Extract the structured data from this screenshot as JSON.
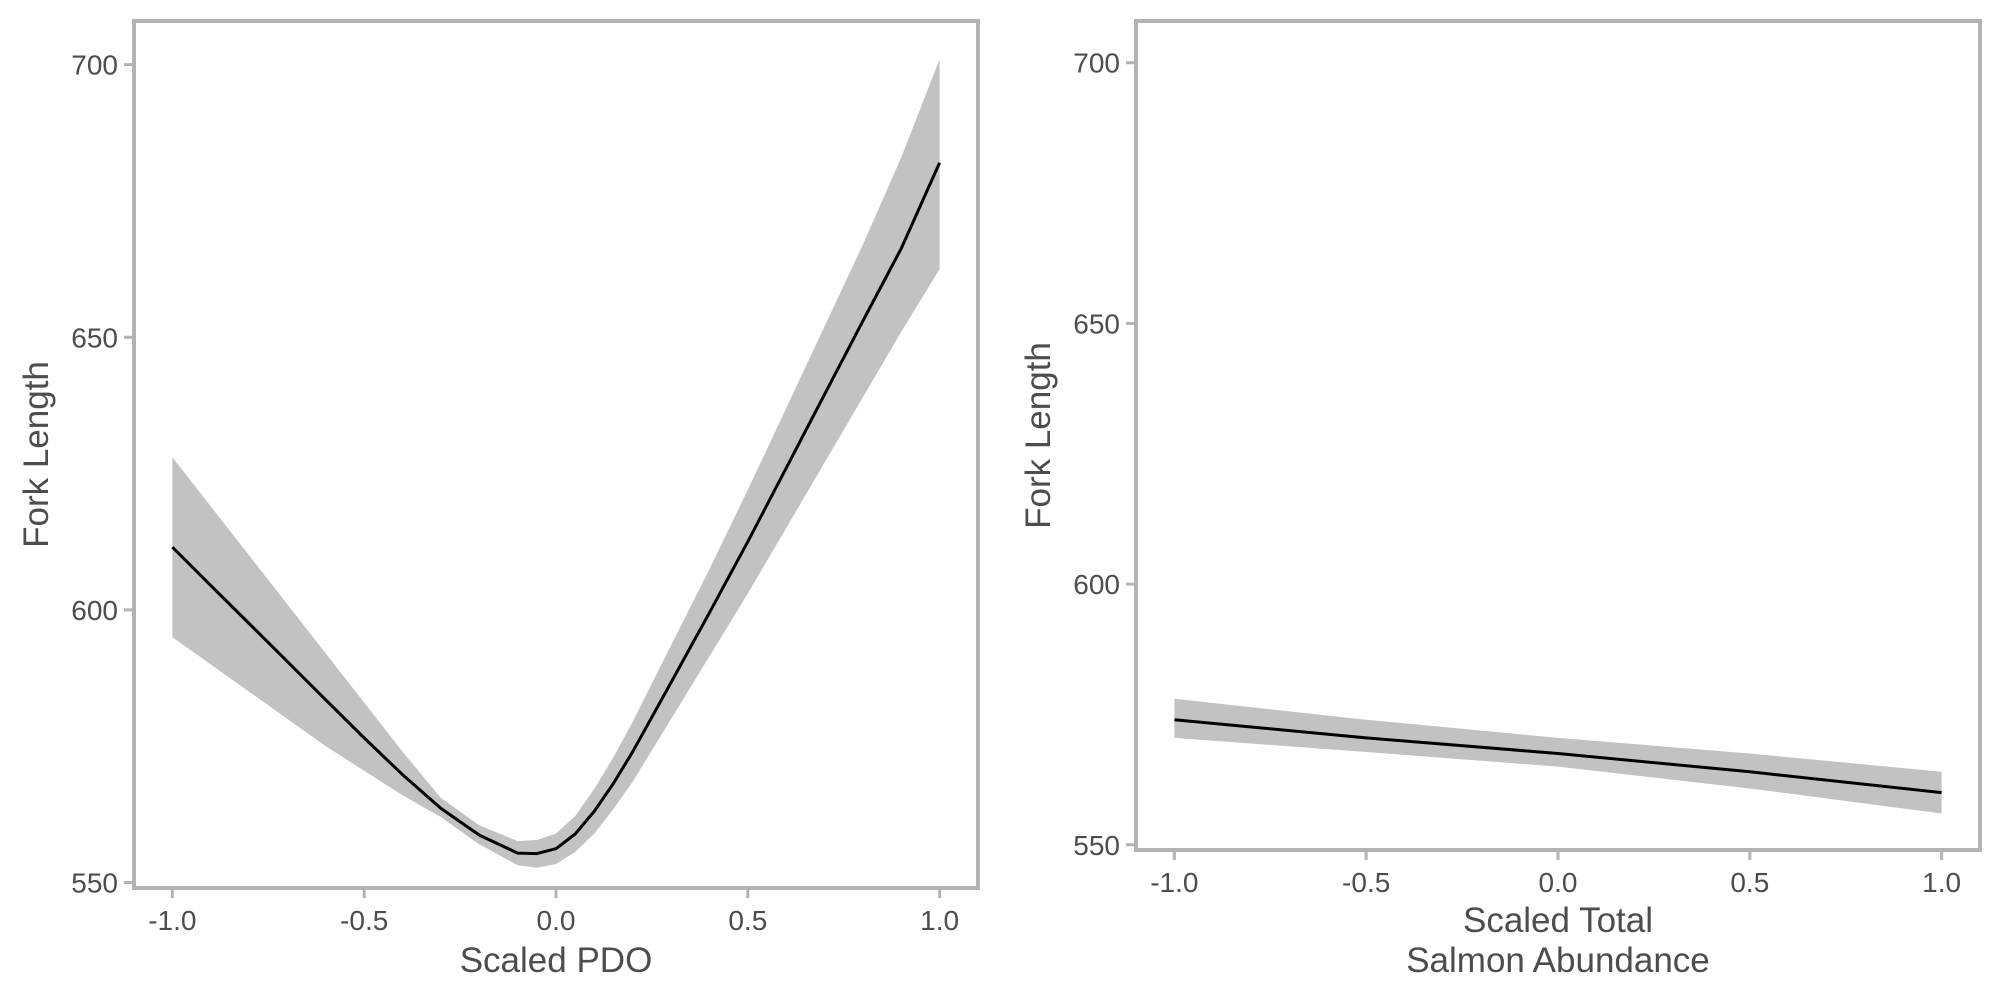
{
  "chart_data": [
    {
      "type": "line",
      "xlabel": "Scaled PDO",
      "ylabel": "Fork Length",
      "xlim": [
        -1.1,
        1.1
      ],
      "ylim": [
        549,
        708
      ],
      "xticks": [
        -1.0,
        -0.5,
        0.0,
        0.5,
        1.0
      ],
      "xtick_labels": [
        "-1.0",
        "-0.5",
        "0.0",
        "0.5",
        "1.0"
      ],
      "yticks": [
        550,
        600,
        650,
        700
      ],
      "ytick_labels": [
        "550",
        "600",
        "650",
        "700"
      ],
      "grid": false,
      "line_color": "#000000",
      "band_color": "#c2c2c2",
      "series": [
        {
          "x": [
            -1.0,
            -0.9,
            -0.8,
            -0.7,
            -0.6,
            -0.5,
            -0.4,
            -0.3,
            -0.2,
            -0.1,
            -0.05,
            0.0,
            0.05,
            0.1,
            0.15,
            0.2,
            0.3,
            0.4,
            0.5,
            0.6,
            0.7,
            0.8,
            0.9,
            1.0
          ],
          "y": [
            611.5,
            604.5,
            597.5,
            590.5,
            583.5,
            576.5,
            569.8,
            563.6,
            558.7,
            555.4,
            555.3,
            556.2,
            558.9,
            563.1,
            568.2,
            574.0,
            586.7,
            599.5,
            612.5,
            626.0,
            639.5,
            653.0,
            666.3,
            682.0
          ],
          "lower": [
            595.0,
            590.0,
            585.0,
            580.0,
            575.0,
            570.5,
            566.0,
            562.0,
            557.0,
            553.2,
            552.7,
            553.4,
            555.6,
            559.0,
            563.5,
            568.5,
            580.0,
            591.5,
            603.0,
            615.0,
            627.0,
            639.0,
            651.0,
            662.5
          ],
          "upper": [
            628.0,
            619.0,
            610.0,
            601.0,
            592.0,
            583.0,
            574.0,
            565.5,
            560.5,
            557.6,
            557.8,
            559.0,
            562.2,
            567.2,
            573.0,
            579.5,
            593.5,
            607.5,
            622.0,
            637.0,
            652.0,
            667.0,
            683.0,
            701.0
          ]
        }
      ]
    },
    {
      "type": "line",
      "xlabel": "Scaled Total\nSalmon Abundance",
      "xlabel_lines": [
        "Scaled Total",
        "Salmon Abundance"
      ],
      "ylabel": "Fork Length",
      "xlim": [
        -1.1,
        1.1
      ],
      "ylim": [
        549,
        708
      ],
      "xticks": [
        -1.0,
        -0.5,
        0.0,
        0.5,
        1.0
      ],
      "xtick_labels": [
        "-1.0",
        "-0.5",
        "0.0",
        "0.5",
        "1.0"
      ],
      "yticks": [
        550,
        600,
        650,
        700
      ],
      "ytick_labels": [
        "550",
        "600",
        "650",
        "700"
      ],
      "grid": false,
      "line_color": "#000000",
      "band_color": "#c2c2c2",
      "series": [
        {
          "x": [
            -1.0,
            -0.5,
            0.0,
            0.5,
            1.0
          ],
          "y": [
            574.0,
            570.5,
            567.5,
            564.0,
            560.0
          ],
          "lower": [
            570.5,
            567.8,
            565.0,
            560.8,
            556.0
          ],
          "upper": [
            578.0,
            574.0,
            570.5,
            567.5,
            564.0
          ]
        }
      ]
    }
  ]
}
